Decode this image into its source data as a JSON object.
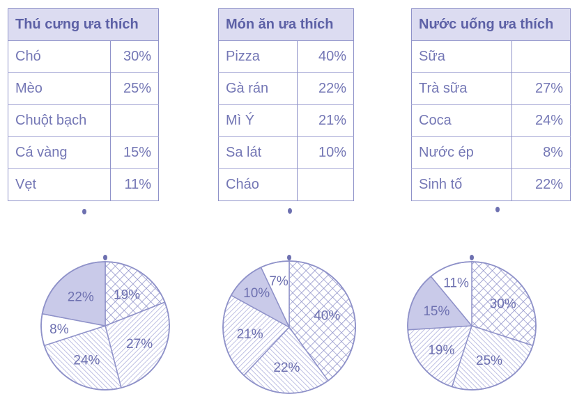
{
  "colors": {
    "line": "#8f92c9",
    "header_bg": "#dcdcf1",
    "solid_slice": "#c9cae9",
    "text": "#6d70b0"
  },
  "tables": [
    {
      "title": "Thú cưng ưa thích",
      "rows": [
        {
          "label": "Chó",
          "value": "30%"
        },
        {
          "label": "Mèo",
          "value": "25%"
        },
        {
          "label": "Chuột bạch",
          "value": ""
        },
        {
          "label": "Cá vàng",
          "value": "15%"
        },
        {
          "label": "Vẹt",
          "value": "11%"
        }
      ]
    },
    {
      "title": "Món ăn ưa thích",
      "rows": [
        {
          "label": "Pizza",
          "value": "40%"
        },
        {
          "label": "Gà rán",
          "value": "22%"
        },
        {
          "label": "Mì Ý",
          "value": "21%"
        },
        {
          "label": "Sa lát",
          "value": "10%"
        },
        {
          "label": "Cháo",
          "value": ""
        }
      ]
    },
    {
      "title": "Nước uống ưa thích",
      "rows": [
        {
          "label": "Sữa",
          "value": ""
        },
        {
          "label": "Trà sữa",
          "value": "27%"
        },
        {
          "label": "Coca",
          "value": "24%"
        },
        {
          "label": "Nước ép",
          "value": "8%"
        },
        {
          "label": "Sinh tố",
          "value": "22%"
        }
      ]
    }
  ],
  "chart_data": [
    {
      "type": "pie",
      "title": "",
      "start": "top, clockwise",
      "labels": [
        "19%",
        "27%",
        "24%",
        "8%",
        "22%"
      ],
      "values": [
        19,
        27,
        24,
        8,
        22
      ],
      "fills": [
        "crosshatch",
        "hatch-up",
        "hatch-down",
        "white",
        "solid"
      ]
    },
    {
      "type": "pie",
      "title": "",
      "start": "top, clockwise",
      "labels": [
        "40%",
        "22%",
        "21%",
        "10%",
        "7%"
      ],
      "values": [
        40,
        22,
        21,
        10,
        7
      ],
      "fills": [
        "crosshatch",
        "hatch-down",
        "hatch-up",
        "solid",
        "white"
      ]
    },
    {
      "type": "pie",
      "title": "",
      "start": "top, clockwise",
      "labels": [
        "30%",
        "25%",
        "19%",
        "15%",
        "11%"
      ],
      "values": [
        30,
        25,
        19,
        15,
        11
      ],
      "fills": [
        "crosshatch",
        "hatch-down",
        "hatch-up",
        "solid",
        "white"
      ]
    }
  ]
}
